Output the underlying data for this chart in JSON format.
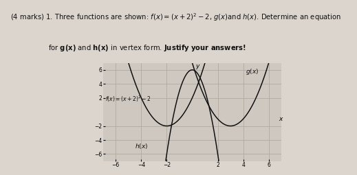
{
  "xlim": [
    -7,
    7
  ],
  "ylim": [
    -7,
    7
  ],
  "xticks": [
    -6,
    -4,
    -2,
    2,
    4,
    6
  ],
  "yticks": [
    -6,
    -4,
    -2,
    2,
    4,
    6
  ],
  "f_label": "$f(x) = (x+2)^2 - 2$",
  "g_label": "$g(x)$",
  "h_label": "$h(x)$",
  "bg_color": "#cec8c0",
  "grid_color": "#aaa49c",
  "curve_color": "#111111",
  "text_color": "#111111",
  "paper_color": "#dbd5ce",
  "line1": "(4 marks) 1. Three functions are shown: $f(x) = (x + 2)^2 - 2$, $g(x)$and $h(x)$. Determine an equation",
  "line2": "for $\\bf{g(x)}$ and $\\bf{h(x)}$ in vertex form. $\\bf{Justify\\ your\\ answers!}$"
}
